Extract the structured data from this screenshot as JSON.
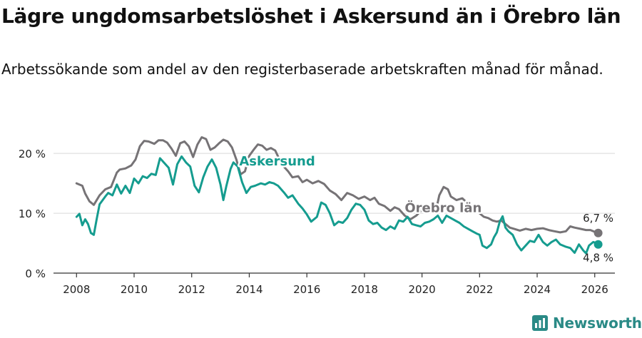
{
  "title": "Lägre ungdomsarbetslöshet i Askersund än i Örebro län",
  "subtitle": "Arbetssökande som andel av den registerbaserade arbetskraften månad för månad.",
  "brand": "Newsworthy",
  "chart_data": {
    "type": "line",
    "xlim": [
      2007.2,
      2026.7
    ],
    "ylim": [
      0,
      23
    ],
    "y_ticks": [
      0,
      10,
      20
    ],
    "y_tick_labels": [
      "0 %",
      "10 %",
      "20 %"
    ],
    "x_ticks": [
      2008,
      2010,
      2012,
      2014,
      2016,
      2018,
      2020,
      2022,
      2024,
      2026
    ],
    "x_tick_labels": [
      "2008",
      "2010",
      "2012",
      "2014",
      "2016",
      "2018",
      "2020",
      "2022",
      "2024",
      "2026"
    ],
    "series": [
      {
        "name": "Örebro län",
        "color": "#767376",
        "end_label": "6,7 %",
        "label_pos": [
          2019.4,
          10.2
        ],
        "points": [
          [
            2008.0,
            15.0
          ],
          [
            2008.2,
            14.6
          ],
          [
            2008.3,
            13.3
          ],
          [
            2008.45,
            12.0
          ],
          [
            2008.6,
            11.4
          ],
          [
            2008.8,
            13.0
          ],
          [
            2009.0,
            14.0
          ],
          [
            2009.2,
            14.4
          ],
          [
            2009.4,
            16.8
          ],
          [
            2009.5,
            17.3
          ],
          [
            2009.7,
            17.5
          ],
          [
            2009.9,
            18.0
          ],
          [
            2010.05,
            19.0
          ],
          [
            2010.2,
            21.2
          ],
          [
            2010.35,
            22.1
          ],
          [
            2010.5,
            22.0
          ],
          [
            2010.7,
            21.6
          ],
          [
            2010.85,
            22.2
          ],
          [
            2011.0,
            22.2
          ],
          [
            2011.15,
            21.8
          ],
          [
            2011.3,
            20.8
          ],
          [
            2011.45,
            19.6
          ],
          [
            2011.6,
            21.7
          ],
          [
            2011.75,
            22.0
          ],
          [
            2011.9,
            21.2
          ],
          [
            2012.05,
            19.4
          ],
          [
            2012.2,
            21.5
          ],
          [
            2012.35,
            22.7
          ],
          [
            2012.5,
            22.4
          ],
          [
            2012.65,
            20.6
          ],
          [
            2012.8,
            21.0
          ],
          [
            2012.95,
            21.7
          ],
          [
            2013.1,
            22.3
          ],
          [
            2013.25,
            22.0
          ],
          [
            2013.4,
            21.0
          ],
          [
            2013.55,
            19.0
          ],
          [
            2013.7,
            16.5
          ],
          [
            2013.85,
            17.0
          ],
          [
            2014.0,
            19.6
          ],
          [
            2014.15,
            20.6
          ],
          [
            2014.3,
            21.5
          ],
          [
            2014.45,
            21.3
          ],
          [
            2014.6,
            20.6
          ],
          [
            2014.75,
            20.9
          ],
          [
            2014.9,
            20.5
          ],
          [
            2015.05,
            19.0
          ],
          [
            2015.2,
            17.8
          ],
          [
            2015.35,
            17.0
          ],
          [
            2015.5,
            16.0
          ],
          [
            2015.7,
            16.2
          ],
          [
            2015.85,
            15.2
          ],
          [
            2016.0,
            15.6
          ],
          [
            2016.2,
            15.0
          ],
          [
            2016.4,
            15.4
          ],
          [
            2016.6,
            14.9
          ],
          [
            2016.8,
            13.8
          ],
          [
            2017.0,
            13.2
          ],
          [
            2017.2,
            12.2
          ],
          [
            2017.4,
            13.4
          ],
          [
            2017.6,
            13.0
          ],
          [
            2017.8,
            12.4
          ],
          [
            2018.0,
            12.8
          ],
          [
            2018.2,
            12.2
          ],
          [
            2018.35,
            12.6
          ],
          [
            2018.5,
            11.6
          ],
          [
            2018.7,
            11.2
          ],
          [
            2018.9,
            10.4
          ],
          [
            2019.05,
            11.0
          ],
          [
            2019.2,
            10.7
          ],
          [
            2019.4,
            9.6
          ],
          [
            2019.6,
            9.0
          ],
          [
            2019.8,
            9.6
          ],
          [
            2020.0,
            10.6
          ],
          [
            2020.1,
            10.4
          ],
          [
            2020.2,
            11.0
          ],
          [
            2020.3,
            10.2
          ],
          [
            2020.4,
            10.4
          ],
          [
            2020.5,
            10.8
          ],
          [
            2020.6,
            13.0
          ],
          [
            2020.75,
            14.4
          ],
          [
            2020.9,
            14.0
          ],
          [
            2021.0,
            12.8
          ],
          [
            2021.2,
            12.2
          ],
          [
            2021.4,
            12.5
          ],
          [
            2021.55,
            11.8
          ],
          [
            2021.7,
            11.4
          ],
          [
            2021.85,
            11.0
          ],
          [
            2022.0,
            10.0
          ],
          [
            2022.15,
            9.4
          ],
          [
            2022.3,
            9.2
          ],
          [
            2022.45,
            8.8
          ],
          [
            2022.6,
            8.6
          ],
          [
            2022.75,
            8.8
          ],
          [
            2022.9,
            8.2
          ],
          [
            2023.05,
            7.6
          ],
          [
            2023.2,
            7.4
          ],
          [
            2023.4,
            7.1
          ],
          [
            2023.6,
            7.4
          ],
          [
            2023.8,
            7.2
          ],
          [
            2024.0,
            7.4
          ],
          [
            2024.2,
            7.5
          ],
          [
            2024.4,
            7.2
          ],
          [
            2024.6,
            7.0
          ],
          [
            2024.8,
            6.8
          ],
          [
            2025.0,
            7.0
          ],
          [
            2025.15,
            7.8
          ],
          [
            2025.3,
            7.6
          ],
          [
            2025.5,
            7.4
          ],
          [
            2025.7,
            7.2
          ],
          [
            2025.85,
            7.2
          ],
          [
            2026.0,
            6.9
          ],
          [
            2026.12,
            6.7
          ]
        ]
      },
      {
        "name": "Askersund",
        "color": "#159c8f",
        "end_label": "4,8 %",
        "label_pos": [
          2013.65,
          18.0
        ],
        "points": [
          [
            2008.0,
            9.4
          ],
          [
            2008.1,
            9.9
          ],
          [
            2008.2,
            8.0
          ],
          [
            2008.3,
            9.0
          ],
          [
            2008.4,
            8.2
          ],
          [
            2008.5,
            6.7
          ],
          [
            2008.6,
            6.4
          ],
          [
            2008.7,
            9.0
          ],
          [
            2008.8,
            11.5
          ],
          [
            2009.0,
            12.8
          ],
          [
            2009.1,
            13.4
          ],
          [
            2009.25,
            13.0
          ],
          [
            2009.4,
            14.8
          ],
          [
            2009.55,
            13.3
          ],
          [
            2009.7,
            14.6
          ],
          [
            2009.85,
            13.4
          ],
          [
            2010.0,
            15.8
          ],
          [
            2010.15,
            15.0
          ],
          [
            2010.3,
            16.2
          ],
          [
            2010.45,
            15.9
          ],
          [
            2010.6,
            16.6
          ],
          [
            2010.75,
            16.4
          ],
          [
            2010.9,
            19.2
          ],
          [
            2011.05,
            18.4
          ],
          [
            2011.2,
            17.6
          ],
          [
            2011.35,
            14.8
          ],
          [
            2011.5,
            18.2
          ],
          [
            2011.65,
            19.5
          ],
          [
            2011.8,
            18.5
          ],
          [
            2011.95,
            17.8
          ],
          [
            2012.1,
            14.6
          ],
          [
            2012.25,
            13.5
          ],
          [
            2012.4,
            16.0
          ],
          [
            2012.55,
            17.8
          ],
          [
            2012.7,
            19.0
          ],
          [
            2012.85,
            17.6
          ],
          [
            2013.0,
            14.8
          ],
          [
            2013.1,
            12.2
          ],
          [
            2013.2,
            14.5
          ],
          [
            2013.35,
            17.4
          ],
          [
            2013.45,
            18.5
          ],
          [
            2013.6,
            17.8
          ],
          [
            2013.75,
            15.2
          ],
          [
            2013.9,
            13.4
          ],
          [
            2014.05,
            14.4
          ],
          [
            2014.2,
            14.6
          ],
          [
            2014.4,
            15.0
          ],
          [
            2014.55,
            14.8
          ],
          [
            2014.7,
            15.2
          ],
          [
            2014.85,
            15.0
          ],
          [
            2015.0,
            14.6
          ],
          [
            2015.2,
            13.5
          ],
          [
            2015.35,
            12.6
          ],
          [
            2015.5,
            13.0
          ],
          [
            2015.7,
            11.6
          ],
          [
            2015.85,
            10.8
          ],
          [
            2016.0,
            9.8
          ],
          [
            2016.15,
            8.6
          ],
          [
            2016.35,
            9.4
          ],
          [
            2016.5,
            11.8
          ],
          [
            2016.65,
            11.4
          ],
          [
            2016.8,
            10.0
          ],
          [
            2016.95,
            8.0
          ],
          [
            2017.1,
            8.6
          ],
          [
            2017.25,
            8.4
          ],
          [
            2017.4,
            9.2
          ],
          [
            2017.55,
            10.6
          ],
          [
            2017.7,
            11.6
          ],
          [
            2017.85,
            11.4
          ],
          [
            2018.0,
            10.6
          ],
          [
            2018.15,
            8.8
          ],
          [
            2018.3,
            8.2
          ],
          [
            2018.45,
            8.4
          ],
          [
            2018.6,
            7.6
          ],
          [
            2018.75,
            7.2
          ],
          [
            2018.9,
            7.8
          ],
          [
            2019.05,
            7.4
          ],
          [
            2019.2,
            8.8
          ],
          [
            2019.35,
            8.6
          ],
          [
            2019.5,
            9.4
          ],
          [
            2019.65,
            8.2
          ],
          [
            2019.8,
            8.0
          ],
          [
            2019.95,
            7.8
          ],
          [
            2020.1,
            8.4
          ],
          [
            2020.25,
            8.6
          ],
          [
            2020.4,
            9.0
          ],
          [
            2020.55,
            9.6
          ],
          [
            2020.7,
            8.4
          ],
          [
            2020.85,
            9.6
          ],
          [
            2021.0,
            9.2
          ],
          [
            2021.15,
            8.8
          ],
          [
            2021.3,
            8.4
          ],
          [
            2021.45,
            7.8
          ],
          [
            2021.6,
            7.4
          ],
          [
            2021.75,
            7.0
          ],
          [
            2021.9,
            6.6
          ],
          [
            2022.0,
            6.4
          ],
          [
            2022.1,
            4.6
          ],
          [
            2022.25,
            4.2
          ],
          [
            2022.4,
            4.8
          ],
          [
            2022.5,
            6.0
          ],
          [
            2022.6,
            6.8
          ],
          [
            2022.7,
            8.6
          ],
          [
            2022.8,
            9.5
          ],
          [
            2022.9,
            7.6
          ],
          [
            2023.0,
            7.0
          ],
          [
            2023.15,
            6.4
          ],
          [
            2023.3,
            4.8
          ],
          [
            2023.45,
            3.8
          ],
          [
            2023.6,
            4.6
          ],
          [
            2023.75,
            5.4
          ],
          [
            2023.9,
            5.2
          ],
          [
            2024.05,
            6.4
          ],
          [
            2024.2,
            5.2
          ],
          [
            2024.35,
            4.6
          ],
          [
            2024.5,
            5.2
          ],
          [
            2024.65,
            5.6
          ],
          [
            2024.8,
            4.8
          ],
          [
            2025.0,
            4.4
          ],
          [
            2025.15,
            4.2
          ],
          [
            2025.3,
            3.4
          ],
          [
            2025.45,
            4.8
          ],
          [
            2025.6,
            3.8
          ],
          [
            2025.7,
            3.3
          ],
          [
            2025.8,
            4.6
          ],
          [
            2025.95,
            5.2
          ],
          [
            2026.05,
            5.0
          ],
          [
            2026.12,
            4.8
          ]
        ]
      }
    ]
  }
}
